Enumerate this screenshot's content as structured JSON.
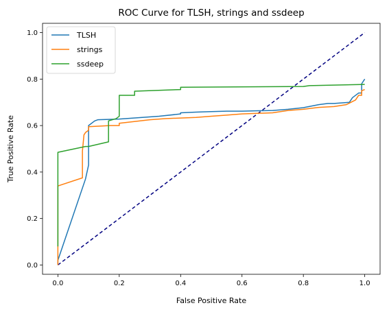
{
  "chart_data": {
    "type": "line",
    "title": "ROC Curve for TLSH, strings and ssdeep",
    "xlabel": "False Positive Rate",
    "ylabel": "True Positive Rate",
    "xlim": [
      -0.05,
      1.05
    ],
    "ylim": [
      -0.04,
      1.04
    ],
    "xticks": [
      0.0,
      0.2,
      0.4,
      0.6,
      0.8,
      1.0
    ],
    "yticks": [
      0.0,
      0.2,
      0.4,
      0.6,
      0.8,
      1.0
    ],
    "xtick_labels": [
      "0.0",
      "0.2",
      "0.4",
      "0.6",
      "0.8",
      "1.0"
    ],
    "ytick_labels": [
      "0.0",
      "0.2",
      "0.4",
      "0.6",
      "0.8",
      "1.0"
    ],
    "grid": false,
    "legend_position": "top-left",
    "series": [
      {
        "name": "TLSH",
        "color": "#1f77b4",
        "points": [
          [
            0.0,
            0.0
          ],
          [
            0.0,
            0.02
          ],
          [
            0.09,
            0.37
          ],
          [
            0.1,
            0.43
          ],
          [
            0.1,
            0.6
          ],
          [
            0.12,
            0.62
          ],
          [
            0.13,
            0.625
          ],
          [
            0.2,
            0.628
          ],
          [
            0.33,
            0.64
          ],
          [
            0.4,
            0.65
          ],
          [
            0.4,
            0.655
          ],
          [
            0.45,
            0.658
          ],
          [
            0.5,
            0.66
          ],
          [
            0.55,
            0.662
          ],
          [
            0.6,
            0.662
          ],
          [
            0.7,
            0.665
          ],
          [
            0.75,
            0.67
          ],
          [
            0.8,
            0.677
          ],
          [
            0.85,
            0.69
          ],
          [
            0.88,
            0.695
          ],
          [
            0.9,
            0.695
          ],
          [
            0.95,
            0.7
          ],
          [
            0.96,
            0.72
          ],
          [
            0.98,
            0.74
          ],
          [
            0.99,
            0.74
          ],
          [
            0.99,
            0.78
          ],
          [
            1.0,
            0.8
          ]
        ]
      },
      {
        "name": "strings",
        "color": "#ff7f0e",
        "points": [
          [
            0.0,
            0.0
          ],
          [
            0.0,
            0.34
          ],
          [
            0.08,
            0.375
          ],
          [
            0.08,
            0.49
          ],
          [
            0.085,
            0.56
          ],
          [
            0.09,
            0.57
          ],
          [
            0.1,
            0.58
          ],
          [
            0.1,
            0.595
          ],
          [
            0.17,
            0.6
          ],
          [
            0.2,
            0.6
          ],
          [
            0.2,
            0.61
          ],
          [
            0.3,
            0.625
          ],
          [
            0.35,
            0.63
          ],
          [
            0.45,
            0.635
          ],
          [
            0.5,
            0.64
          ],
          [
            0.55,
            0.645
          ],
          [
            0.6,
            0.65
          ],
          [
            0.7,
            0.655
          ],
          [
            0.75,
            0.665
          ],
          [
            0.8,
            0.67
          ],
          [
            0.85,
            0.678
          ],
          [
            0.9,
            0.682
          ],
          [
            0.94,
            0.69
          ],
          [
            0.97,
            0.71
          ],
          [
            0.98,
            0.73
          ],
          [
            0.99,
            0.73
          ],
          [
            0.99,
            0.75
          ],
          [
            1.0,
            0.755
          ]
        ]
      },
      {
        "name": "ssdeep",
        "color": "#2ca02c",
        "points": [
          [
            0.0,
            0.08
          ],
          [
            0.0,
            0.485
          ],
          [
            0.09,
            0.51
          ],
          [
            0.1,
            0.51
          ],
          [
            0.165,
            0.53
          ],
          [
            0.165,
            0.62
          ],
          [
            0.19,
            0.63
          ],
          [
            0.2,
            0.64
          ],
          [
            0.2,
            0.73
          ],
          [
            0.25,
            0.73
          ],
          [
            0.25,
            0.748
          ],
          [
            0.4,
            0.755
          ],
          [
            0.4,
            0.765
          ],
          [
            0.8,
            0.768
          ],
          [
            0.82,
            0.772
          ],
          [
            1.0,
            0.777
          ]
        ]
      }
    ],
    "reference_line": {
      "color": "#000080",
      "style": "dashed",
      "points": [
        [
          0.0,
          0.0
        ],
        [
          1.0,
          1.0
        ]
      ]
    }
  }
}
